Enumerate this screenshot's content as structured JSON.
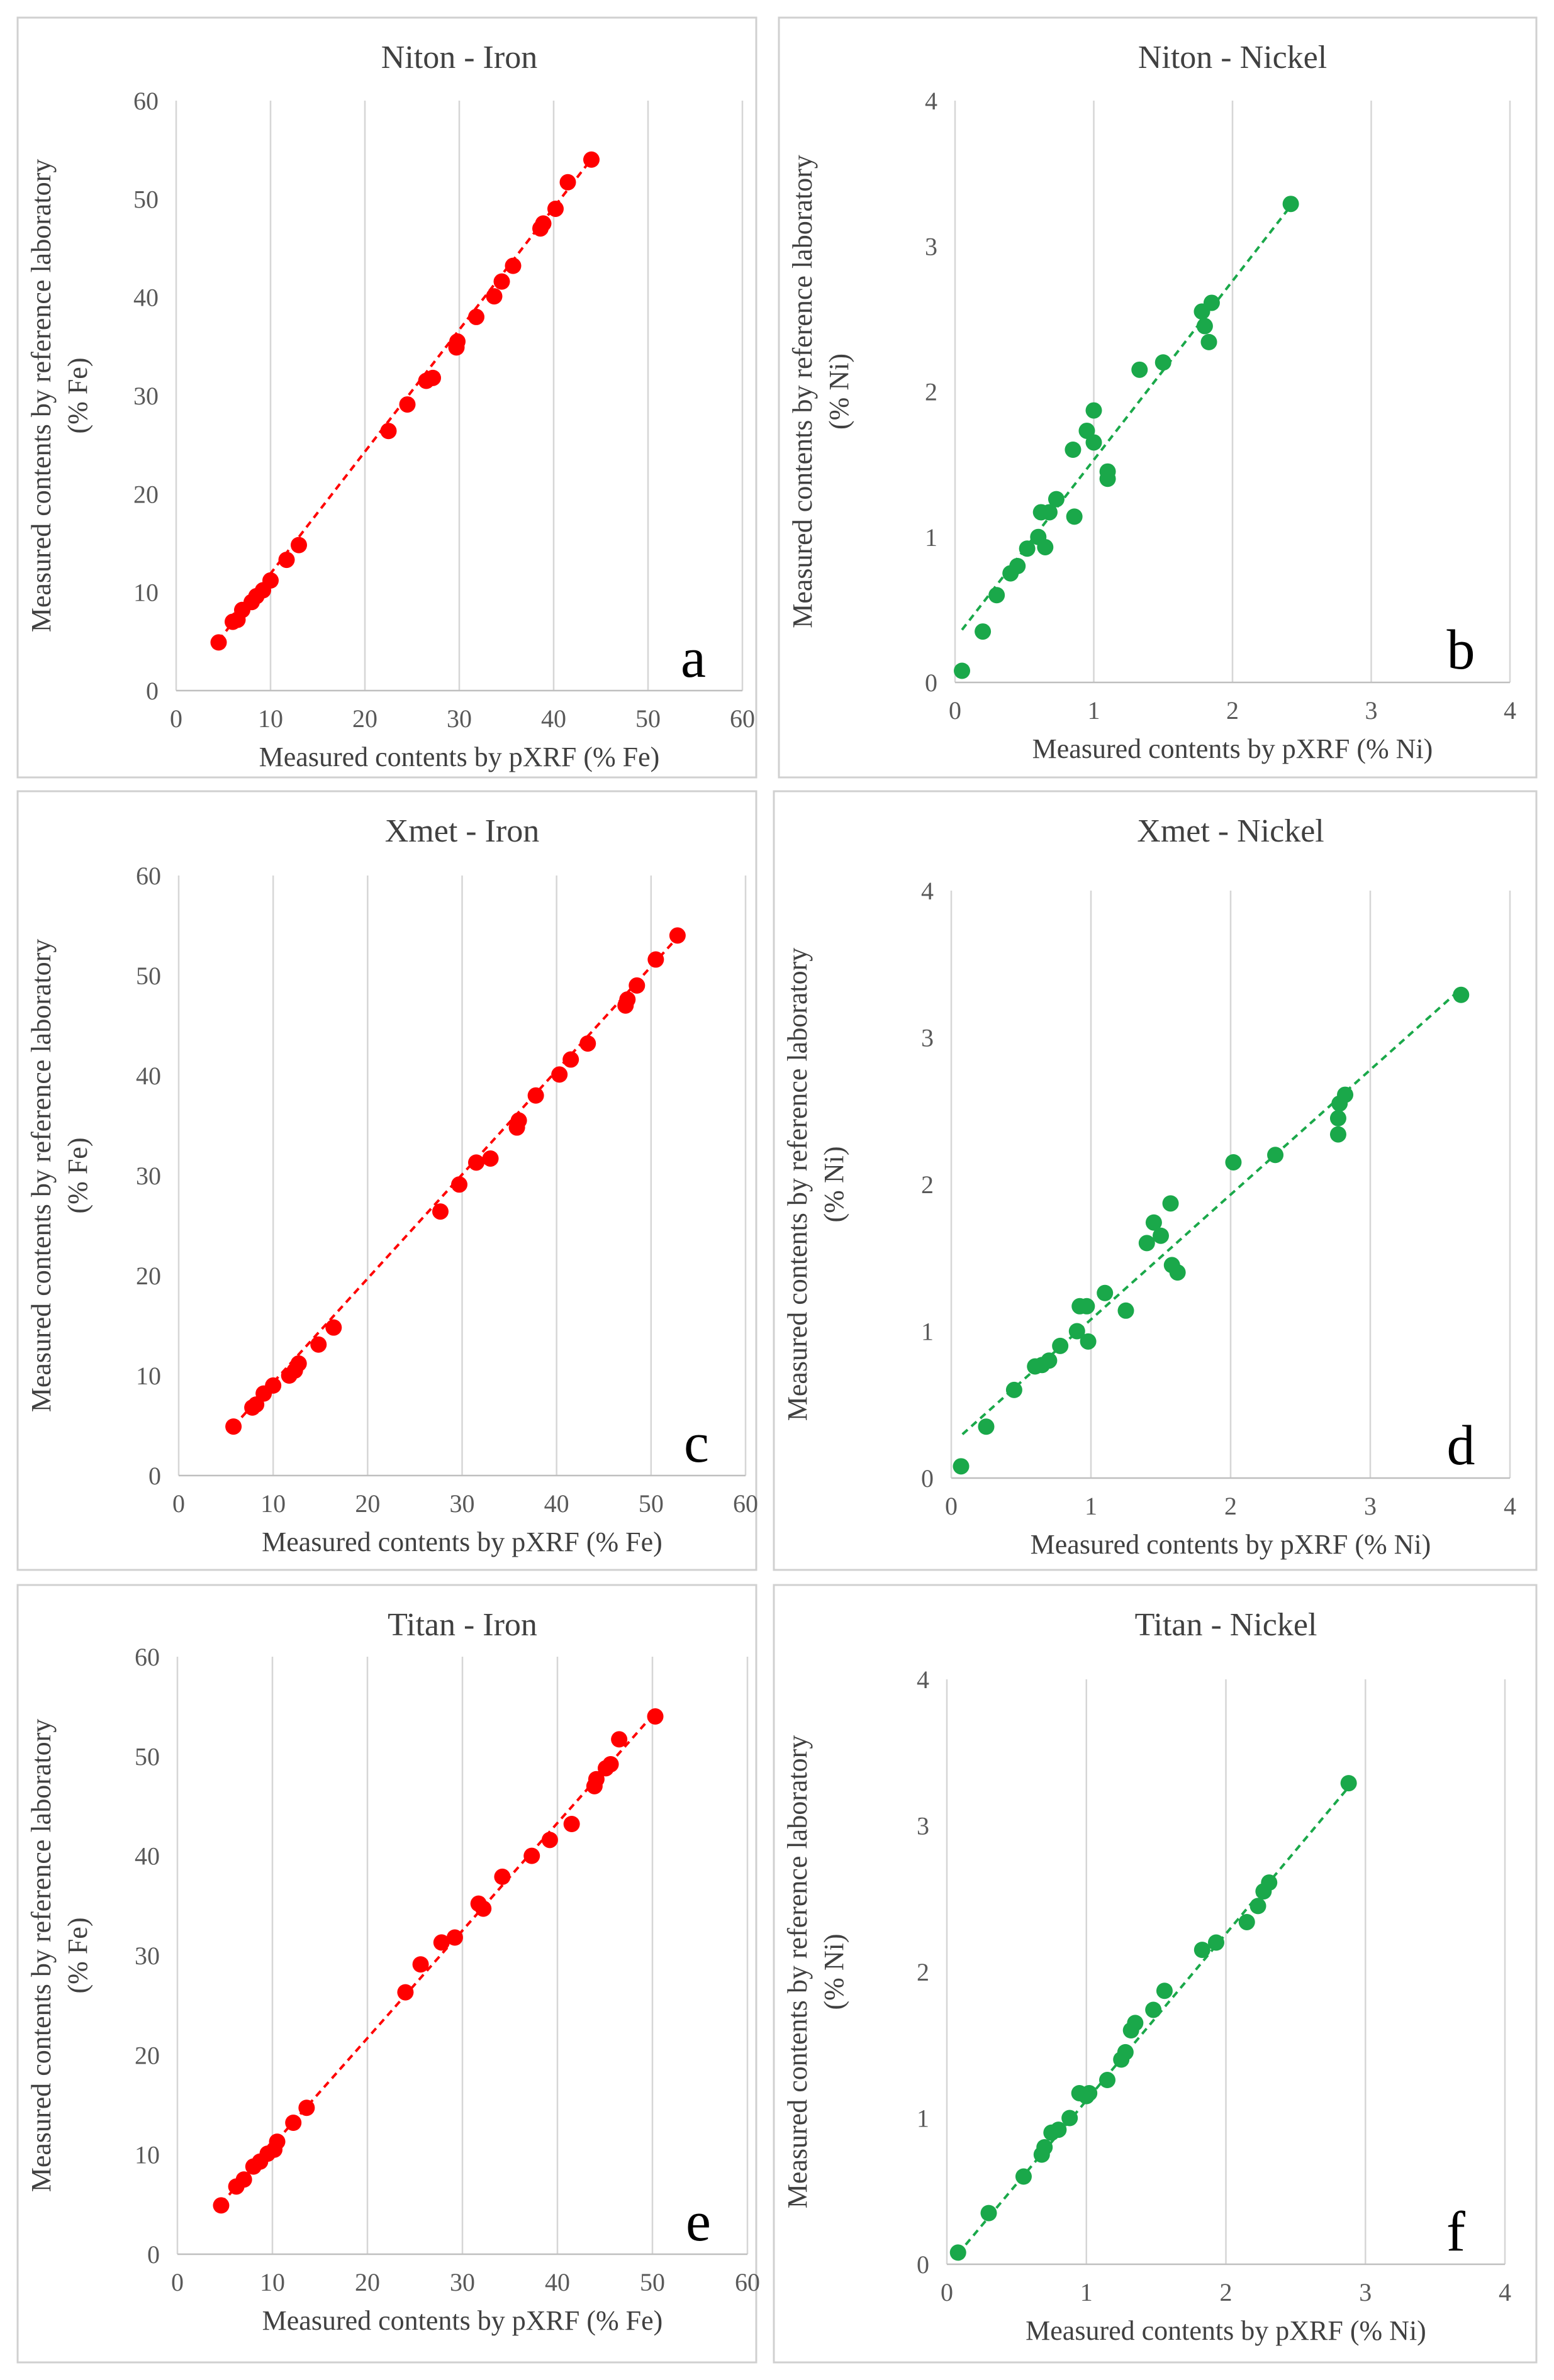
{
  "chart_data": [
    {
      "type": "scatter",
      "panel_letter": "a",
      "title": "Niton - Iron",
      "xlabel": "Measured contents by pXRF  (% Fe)",
      "ylabel_line1": "Measured contents by reference laboratory",
      "ylabel_line2": "(% Fe)",
      "xlim": [
        0,
        60
      ],
      "ylim": [
        0,
        60
      ],
      "xticks": [
        "0",
        "10",
        "20",
        "30",
        "40",
        "50",
        "60"
      ],
      "yticks": [
        "0",
        "10",
        "20",
        "30",
        "40",
        "50",
        "60"
      ],
      "grid": "vertical",
      "color": "#ff0000",
      "trendline": {
        "x0": 4.5,
        "x1": 44.0,
        "slope": 1.24,
        "intercept": -0.5
      },
      "points": [
        {
          "x": 4.5,
          "y": 4.9
        },
        {
          "x": 6,
          "y": 7
        },
        {
          "x": 6.5,
          "y": 7.2
        },
        {
          "x": 7,
          "y": 8.2
        },
        {
          "x": 8,
          "y": 9
        },
        {
          "x": 8.5,
          "y": 9.6
        },
        {
          "x": 9.2,
          "y": 10.2
        },
        {
          "x": 10,
          "y": 11.2
        },
        {
          "x": 11.7,
          "y": 13.3
        },
        {
          "x": 13,
          "y": 14.8
        },
        {
          "x": 22.5,
          "y": 26.4
        },
        {
          "x": 24.5,
          "y": 29.1
        },
        {
          "x": 26.5,
          "y": 31.5
        },
        {
          "x": 27.2,
          "y": 31.8
        },
        {
          "x": 29.7,
          "y": 34.9
        },
        {
          "x": 29.8,
          "y": 35.5
        },
        {
          "x": 31.8,
          "y": 38
        },
        {
          "x": 33.7,
          "y": 40.1
        },
        {
          "x": 34.5,
          "y": 41.6
        },
        {
          "x": 35.7,
          "y": 43.2
        },
        {
          "x": 38.6,
          "y": 47
        },
        {
          "x": 38.9,
          "y": 47.5
        },
        {
          "x": 40.2,
          "y": 49
        },
        {
          "x": 41.5,
          "y": 51.7
        },
        {
          "x": 44,
          "y": 54
        }
      ]
    },
    {
      "type": "scatter",
      "panel_letter": "b",
      "title": "Niton - Nickel",
      "xlabel": "Measured contents by pXRF  (% Ni)",
      "ylabel_line1": "Measured contents by reference laboratory",
      "ylabel_line2": "(% Ni)",
      "xlim": [
        0,
        4
      ],
      "ylim": [
        0,
        4
      ],
      "xticks": [
        "0",
        "1",
        "2",
        "3",
        "4"
      ],
      "yticks": [
        "0",
        "1",
        "2",
        "3",
        "4"
      ],
      "grid": "vertical",
      "color": "#1aa84a",
      "trendline": {
        "x0": 0.05,
        "x1": 2.4,
        "slope": 1.23,
        "intercept": 0.3
      },
      "points": [
        {
          "x": 0.05,
          "y": 0.08
        },
        {
          "x": 0.2,
          "y": 0.35
        },
        {
          "x": 0.3,
          "y": 0.6
        },
        {
          "x": 0.4,
          "y": 0.75
        },
        {
          "x": 0.45,
          "y": 0.8
        },
        {
          "x": 0.52,
          "y": 0.92
        },
        {
          "x": 0.6,
          "y": 1.0
        },
        {
          "x": 0.62,
          "y": 1.17
        },
        {
          "x": 0.65,
          "y": 0.93
        },
        {
          "x": 0.68,
          "y": 1.17
        },
        {
          "x": 0.73,
          "y": 1.26
        },
        {
          "x": 0.85,
          "y": 1.6
        },
        {
          "x": 0.86,
          "y": 1.14
        },
        {
          "x": 0.95,
          "y": 1.73
        },
        {
          "x": 1.0,
          "y": 1.87
        },
        {
          "x": 1.0,
          "y": 1.65
        },
        {
          "x": 1.1,
          "y": 1.45
        },
        {
          "x": 1.1,
          "y": 1.4
        },
        {
          "x": 1.33,
          "y": 2.15
        },
        {
          "x": 1.5,
          "y": 2.2
        },
        {
          "x": 1.78,
          "y": 2.55
        },
        {
          "x": 1.8,
          "y": 2.45
        },
        {
          "x": 1.83,
          "y": 2.34
        },
        {
          "x": 1.85,
          "y": 2.61
        },
        {
          "x": 2.42,
          "y": 3.29
        }
      ]
    },
    {
      "type": "scatter",
      "panel_letter": "c",
      "title": "Xmet - Iron",
      "xlabel": "Measured contents by pXRF  (% Fe)",
      "ylabel_line1": "Measured contents by reference laboratory",
      "ylabel_line2": "(% Fe)",
      "xlim": [
        0,
        60
      ],
      "ylim": [
        0,
        60
      ],
      "xticks": [
        "0",
        "10",
        "20",
        "30",
        "40",
        "50",
        "60"
      ],
      "yticks": [
        "0",
        "10",
        "20",
        "30",
        "40",
        "50",
        "60"
      ],
      "grid": "vertical",
      "color": "#ff0000",
      "trendline": {
        "x0": 5.8,
        "x1": 52.8,
        "slope": 1.04,
        "intercept": -1.1
      },
      "points": [
        {
          "x": 5.8,
          "y": 4.9
        },
        {
          "x": 7.8,
          "y": 6.8
        },
        {
          "x": 8.2,
          "y": 7.1
        },
        {
          "x": 9,
          "y": 8.2
        },
        {
          "x": 10,
          "y": 9
        },
        {
          "x": 11.7,
          "y": 10
        },
        {
          "x": 12.3,
          "y": 10.5
        },
        {
          "x": 12.7,
          "y": 11.2
        },
        {
          "x": 14.8,
          "y": 13.1
        },
        {
          "x": 16.4,
          "y": 14.8
        },
        {
          "x": 27.7,
          "y": 26.4
        },
        {
          "x": 29.7,
          "y": 29.1
        },
        {
          "x": 31.5,
          "y": 31.3
        },
        {
          "x": 33,
          "y": 31.7
        },
        {
          "x": 35.8,
          "y": 34.8
        },
        {
          "x": 36,
          "y": 35.5
        },
        {
          "x": 37.8,
          "y": 38
        },
        {
          "x": 40.3,
          "y": 40.1
        },
        {
          "x": 41.5,
          "y": 41.6
        },
        {
          "x": 43.3,
          "y": 43.2
        },
        {
          "x": 47.3,
          "y": 47
        },
        {
          "x": 47.5,
          "y": 47.6
        },
        {
          "x": 48.5,
          "y": 49
        },
        {
          "x": 50.5,
          "y": 51.6
        },
        {
          "x": 52.8,
          "y": 54
        }
      ]
    },
    {
      "type": "scatter",
      "panel_letter": "d",
      "title": "Xmet - Nickel",
      "xlabel": "Measured contents by pXRF  (% Ni)",
      "ylabel_line1": "Measured contents by reference laboratory",
      "ylabel_line2": "(% Ni)",
      "xlim": [
        0,
        4
      ],
      "ylim": [
        0,
        4
      ],
      "xticks": [
        "0",
        "1",
        "2",
        "3",
        "4"
      ],
      "yticks": [
        "0",
        "1",
        "2",
        "3",
        "4"
      ],
      "grid": "vertical",
      "color": "#1aa84a",
      "trendline": {
        "x0": 0.08,
        "x1": 3.62,
        "slope": 0.85,
        "intercept": 0.23
      },
      "points": [
        {
          "x": 0.07,
          "y": 0.08
        },
        {
          "x": 0.25,
          "y": 0.35
        },
        {
          "x": 0.45,
          "y": 0.6
        },
        {
          "x": 0.6,
          "y": 0.76
        },
        {
          "x": 0.65,
          "y": 0.77
        },
        {
          "x": 0.7,
          "y": 0.8
        },
        {
          "x": 0.78,
          "y": 0.9
        },
        {
          "x": 0.9,
          "y": 1.0
        },
        {
          "x": 0.92,
          "y": 1.17
        },
        {
          "x": 0.97,
          "y": 1.17
        },
        {
          "x": 0.98,
          "y": 0.93
        },
        {
          "x": 1.1,
          "y": 1.26
        },
        {
          "x": 1.25,
          "y": 1.14
        },
        {
          "x": 1.4,
          "y": 1.6
        },
        {
          "x": 1.45,
          "y": 1.74
        },
        {
          "x": 1.5,
          "y": 1.65
        },
        {
          "x": 1.57,
          "y": 1.87
        },
        {
          "x": 1.58,
          "y": 1.45
        },
        {
          "x": 1.62,
          "y": 1.4
        },
        {
          "x": 2.02,
          "y": 2.15
        },
        {
          "x": 2.32,
          "y": 2.2
        },
        {
          "x": 2.77,
          "y": 2.34
        },
        {
          "x": 2.77,
          "y": 2.45
        },
        {
          "x": 2.78,
          "y": 2.55
        },
        {
          "x": 2.82,
          "y": 2.61
        },
        {
          "x": 3.65,
          "y": 3.29
        }
      ]
    },
    {
      "type": "scatter",
      "panel_letter": "e",
      "title": "Titan - Iron",
      "xlabel": "Measured contents by pXRF  (% Fe)",
      "ylabel_line1": "Measured contents by reference laboratory",
      "ylabel_line2": "(% Fe)",
      "xlim": [
        0,
        60
      ],
      "ylim": [
        0,
        60
      ],
      "xticks": [
        "0",
        "10",
        "20",
        "30",
        "40",
        "50",
        "60"
      ],
      "yticks": [
        "0",
        "10",
        "20",
        "30",
        "40",
        "50",
        "60"
      ],
      "grid": "vertical",
      "color": "#ff0000",
      "trendline": {
        "x0": 4.6,
        "x1": 50.2,
        "slope": 1.08,
        "intercept": 0.1
      },
      "points": [
        {
          "x": 4.6,
          "y": 4.9
        },
        {
          "x": 6.2,
          "y": 6.8
        },
        {
          "x": 7,
          "y": 7.5
        },
        {
          "x": 8,
          "y": 8.8
        },
        {
          "x": 8.7,
          "y": 9.3
        },
        {
          "x": 9.5,
          "y": 10.1
        },
        {
          "x": 10.2,
          "y": 10.5
        },
        {
          "x": 10.5,
          "y": 11.3
        },
        {
          "x": 12.2,
          "y": 13.2
        },
        {
          "x": 13.6,
          "y": 14.7
        },
        {
          "x": 24,
          "y": 26.3
        },
        {
          "x": 25.6,
          "y": 29.1
        },
        {
          "x": 27.8,
          "y": 31.3
        },
        {
          "x": 29.2,
          "y": 31.8
        },
        {
          "x": 31.7,
          "y": 35.2
        },
        {
          "x": 32.2,
          "y": 34.7
        },
        {
          "x": 34.2,
          "y": 37.9
        },
        {
          "x": 37.3,
          "y": 40
        },
        {
          "x": 39.2,
          "y": 41.6
        },
        {
          "x": 41.5,
          "y": 43.2
        },
        {
          "x": 43.9,
          "y": 47
        },
        {
          "x": 44.1,
          "y": 47.7
        },
        {
          "x": 45.1,
          "y": 48.8
        },
        {
          "x": 45.6,
          "y": 49.2
        },
        {
          "x": 46.5,
          "y": 51.7
        },
        {
          "x": 50.3,
          "y": 54
        }
      ]
    },
    {
      "type": "scatter",
      "panel_letter": "f",
      "title": "Titan - Nickel",
      "xlabel": "Measured contents by pXRF  (% Ni)",
      "ylabel_line1": "Measured contents by reference laboratory",
      "ylabel_line2": "(% Ni)",
      "xlim": [
        0,
        4
      ],
      "ylim": [
        0,
        4
      ],
      "xticks": [
        "0",
        "1",
        "2",
        "3",
        "4"
      ],
      "yticks": [
        "0",
        "1",
        "2",
        "3",
        "4"
      ],
      "grid": "vertical",
      "color": "#1aa84a",
      "trendline": {
        "x0": 0.08,
        "x1": 2.88,
        "slope": 1.14,
        "intercept": -0.02
      },
      "points": [
        {
          "x": 0.08,
          "y": 0.08
        },
        {
          "x": 0.3,
          "y": 0.35
        },
        {
          "x": 0.55,
          "y": 0.6
        },
        {
          "x": 0.68,
          "y": 0.75
        },
        {
          "x": 0.7,
          "y": 0.8
        },
        {
          "x": 0.75,
          "y": 0.9
        },
        {
          "x": 0.8,
          "y": 0.92
        },
        {
          "x": 0.88,
          "y": 1.0
        },
        {
          "x": 0.95,
          "y": 1.17
        },
        {
          "x": 1.0,
          "y": 1.15
        },
        {
          "x": 1.02,
          "y": 1.17
        },
        {
          "x": 1.15,
          "y": 1.26
        },
        {
          "x": 1.25,
          "y": 1.4
        },
        {
          "x": 1.28,
          "y": 1.45
        },
        {
          "x": 1.32,
          "y": 1.6
        },
        {
          "x": 1.35,
          "y": 1.65
        },
        {
          "x": 1.48,
          "y": 1.74
        },
        {
          "x": 1.56,
          "y": 1.87
        },
        {
          "x": 1.83,
          "y": 2.15
        },
        {
          "x": 1.93,
          "y": 2.2
        },
        {
          "x": 2.15,
          "y": 2.34
        },
        {
          "x": 2.23,
          "y": 2.45
        },
        {
          "x": 2.27,
          "y": 2.55
        },
        {
          "x": 2.31,
          "y": 2.61
        },
        {
          "x": 2.88,
          "y": 3.29
        }
      ]
    }
  ]
}
